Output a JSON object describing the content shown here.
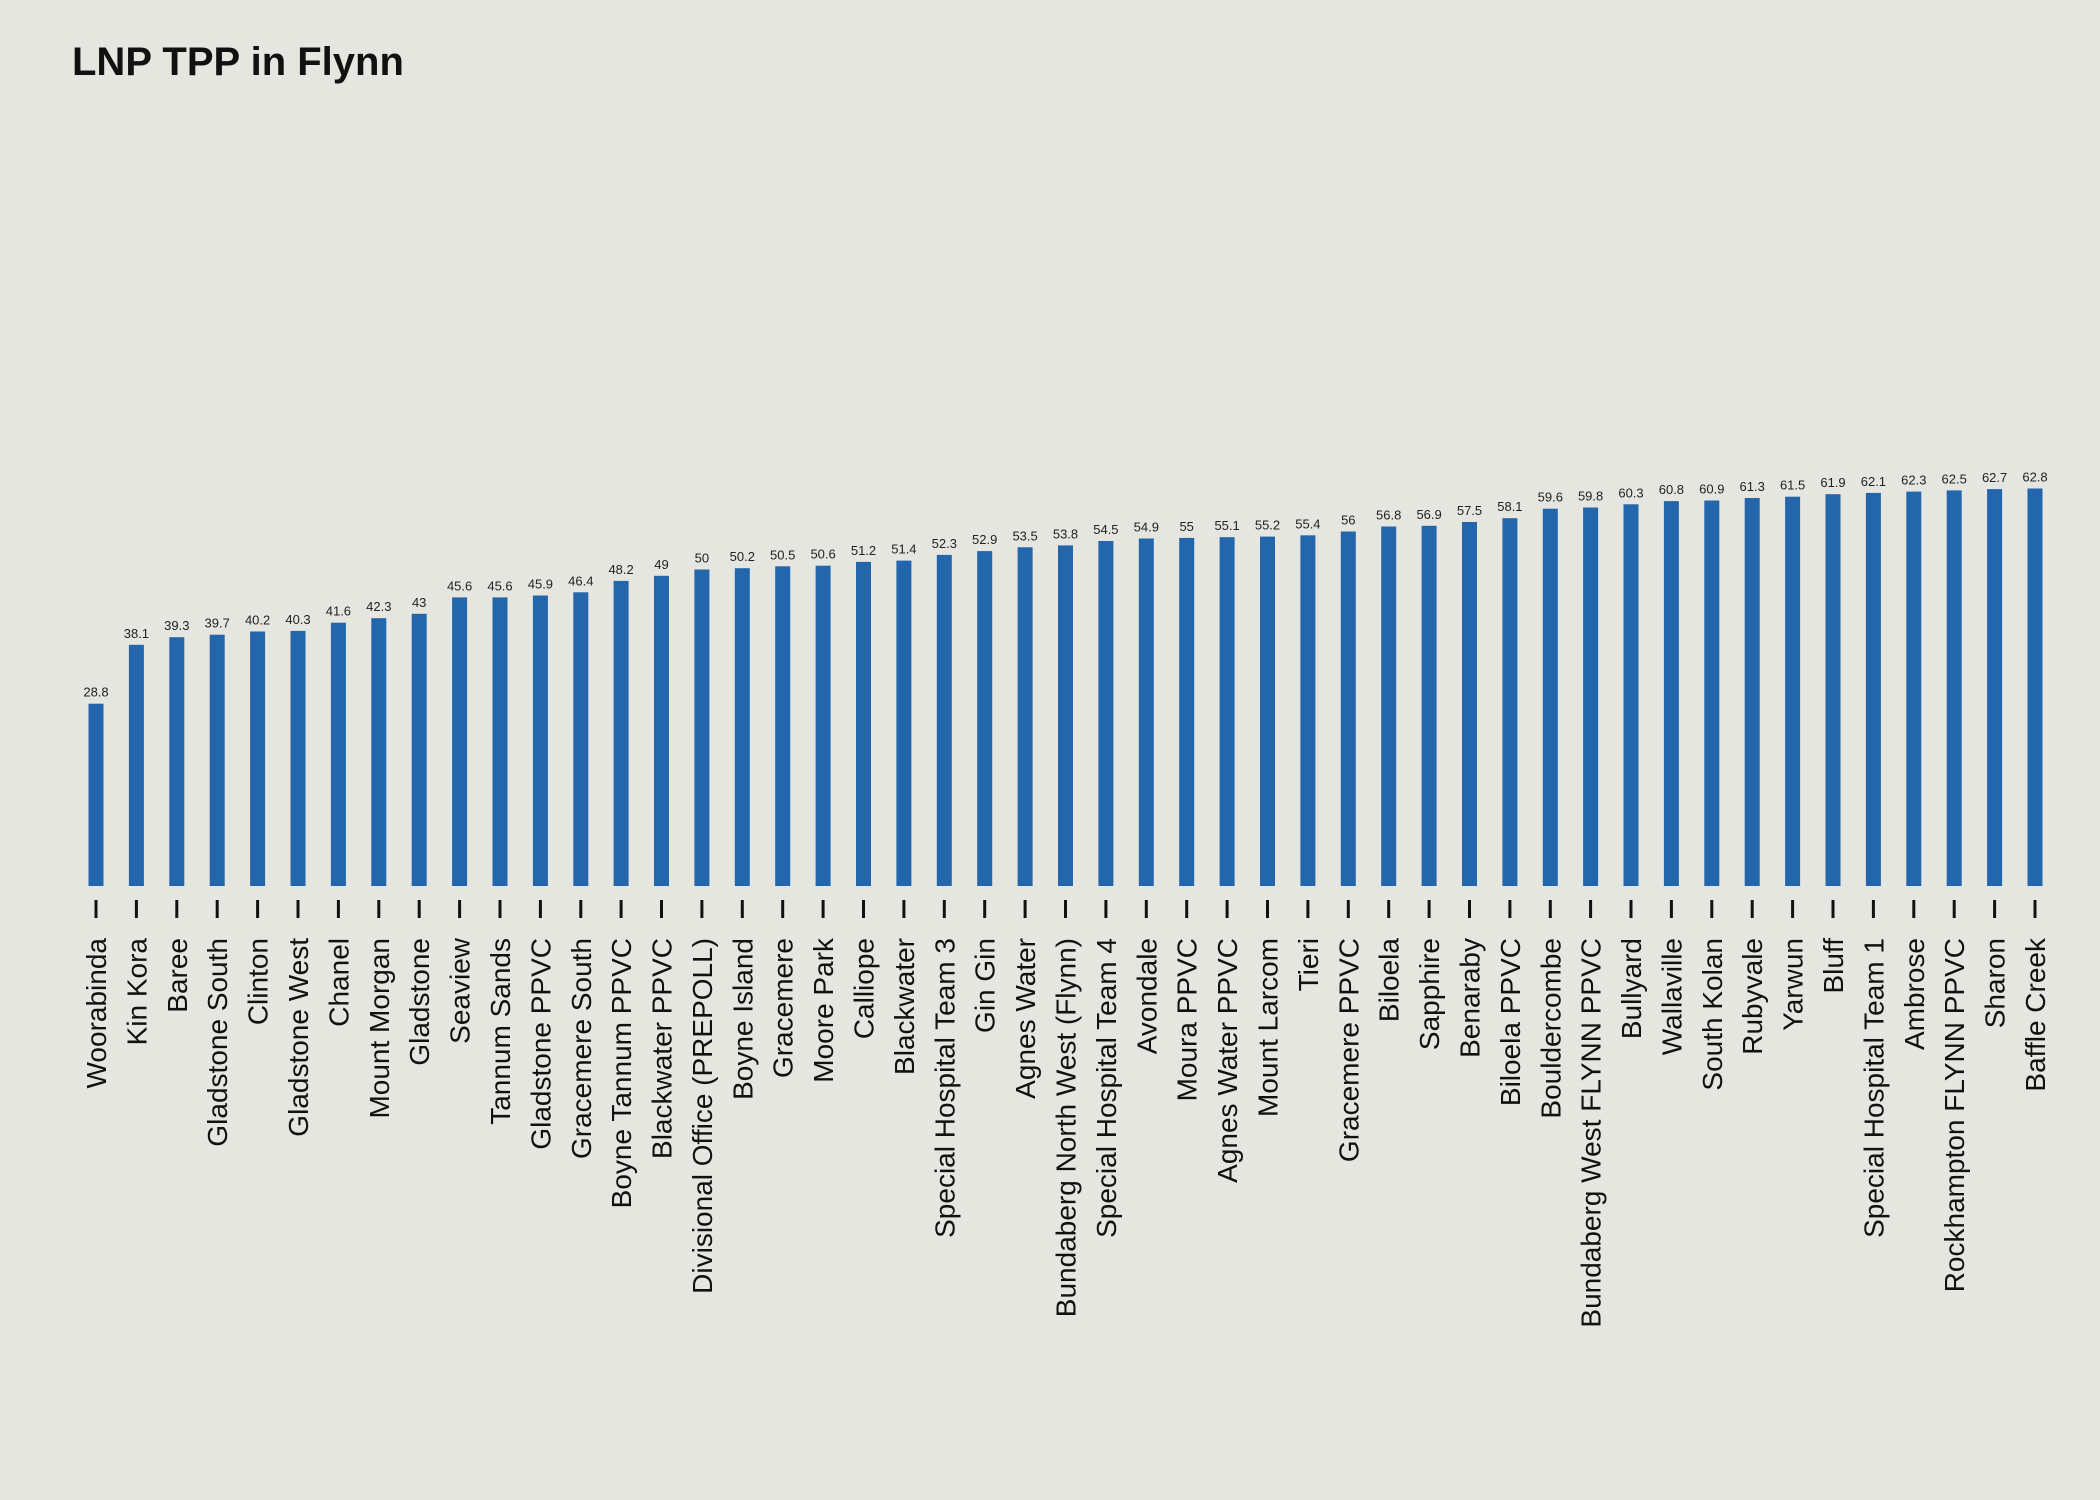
{
  "colors": {
    "background": "#e6e6e0",
    "bar": "#2366ac",
    "text": "#111111"
  },
  "chart_data": {
    "type": "bar",
    "title": "LNP TPP in Flynn",
    "xlabel": "",
    "ylabel": "",
    "ylim": [
      0,
      100
    ],
    "grid": false,
    "legend": "none",
    "categories": [
      "Woorabinda",
      "Kin Kora",
      "Baree",
      "Gladstone South",
      "Clinton",
      "Gladstone West",
      "Chanel",
      "Mount Morgan",
      "Gladstone",
      "Seaview",
      "Tannum Sands",
      "Gladstone PPVC",
      "Gracemere South",
      "Boyne Tannum PPVC",
      "Blackwater PPVC",
      "Divisional Office (PREPOLL)",
      "Boyne Island",
      "Gracemere",
      "Moore Park",
      "Calliope",
      "Blackwater",
      "Special Hospital Team 3",
      "Gin Gin",
      "Agnes Water",
      "Bundaberg North West (Flynn)",
      "Special Hospital Team 4",
      "Avondale",
      "Moura PPVC",
      "Agnes Water PPVC",
      "Mount Larcom",
      "Tieri",
      "Gracemere PPVC",
      "Biloela",
      "Sapphire",
      "Benaraby",
      "Biloela PPVC",
      "Bouldercombe",
      "Bundaberg West FLYNN PPVC",
      "Bullyard",
      "Wallaville",
      "South Kolan",
      "Rubyvale",
      "Yarwun",
      "Bluff",
      "Special Hospital Team 1",
      "Ambrose",
      "Rockhampton FLYNN PPVC",
      "Sharon",
      "Baffle Creek"
    ],
    "values": [
      28.8,
      38.1,
      39.3,
      39.7,
      40.2,
      40.3,
      41.6,
      42.3,
      43,
      45.6,
      45.6,
      45.9,
      46.4,
      48.2,
      49,
      50,
      50.2,
      50.5,
      50.6,
      51.2,
      51.4,
      52.3,
      52.9,
      53.5,
      53.8,
      54.5,
      54.9,
      55,
      55.1,
      55.2,
      55.4,
      56,
      56.8,
      56.9,
      57.5,
      58.1,
      59.6,
      59.8,
      60.3,
      60.8,
      60.9,
      61.3,
      61.5,
      61.9,
      62.1,
      62.3,
      62.5,
      62.7,
      62.8
    ],
    "value_labels": [
      "28.8",
      "38.1",
      "39.3",
      "39.7",
      "40.2",
      "40.3",
      "41.6",
      "42.3",
      "43",
      "45.6",
      "45.6",
      "45.9",
      "46.4",
      "48.2",
      "49",
      "50",
      "50.2",
      "50.5",
      "50.6",
      "51.2",
      "51.4",
      "52.3",
      "52.9",
      "53.5",
      "53.8",
      "54.5",
      "54.9",
      "55",
      "55.1",
      "55.2",
      "55.4",
      "56",
      "56.8",
      "56.9",
      "57.5",
      "58.1",
      "59.6",
      "59.8",
      "60.3",
      "60.8",
      "60.9",
      "61.3",
      "61.5",
      "61.9",
      "62.1",
      "62.3",
      "62.5",
      "62.7",
      "62.8"
    ]
  }
}
